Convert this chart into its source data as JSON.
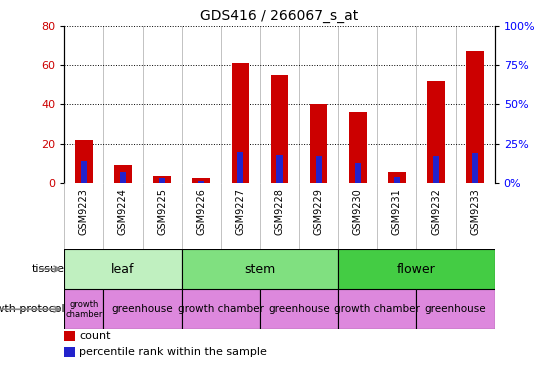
{
  "title": "GDS416 / 266067_s_at",
  "samples": [
    "GSM9223",
    "GSM9224",
    "GSM9225",
    "GSM9226",
    "GSM9227",
    "GSM9228",
    "GSM9229",
    "GSM9230",
    "GSM9231",
    "GSM9232",
    "GSM9233"
  ],
  "counts": [
    22,
    9,
    3.5,
    2.5,
    61,
    55,
    40,
    36,
    5.5,
    52,
    67
  ],
  "percentile": [
    14,
    7,
    3,
    1.5,
    20,
    18,
    17,
    13,
    3.5,
    17,
    19
  ],
  "tissue_groups": [
    {
      "label": "leaf",
      "start": 0,
      "end": 3,
      "color": "#c0f0c0"
    },
    {
      "label": "stem",
      "start": 3,
      "end": 7,
      "color": "#80e080"
    },
    {
      "label": "flower",
      "start": 7,
      "end": 11,
      "color": "#44cc44"
    }
  ],
  "protocol_groups": [
    {
      "label": "growth\nchamber",
      "start": 0,
      "end": 1,
      "small": true
    },
    {
      "label": "greenhouse",
      "start": 1,
      "end": 3,
      "small": false
    },
    {
      "label": "growth chamber",
      "start": 3,
      "end": 5,
      "small": false
    },
    {
      "label": "greenhouse",
      "start": 5,
      "end": 7,
      "small": false
    },
    {
      "label": "growth chamber",
      "start": 7,
      "end": 9,
      "small": false
    },
    {
      "label": "greenhouse",
      "start": 9,
      "end": 11,
      "small": false
    }
  ],
  "protocol_color": "#dd88dd",
  "bar_color_red": "#cc0000",
  "bar_color_blue": "#2222cc",
  "ylim_left": [
    0,
    80
  ],
  "ylim_right": [
    0,
    100
  ],
  "yticks_left": [
    0,
    20,
    40,
    60,
    80
  ],
  "yticks_right": [
    0,
    25,
    50,
    75,
    100
  ],
  "xtick_bg": "#d8d8d8",
  "bar_width": 0.45
}
